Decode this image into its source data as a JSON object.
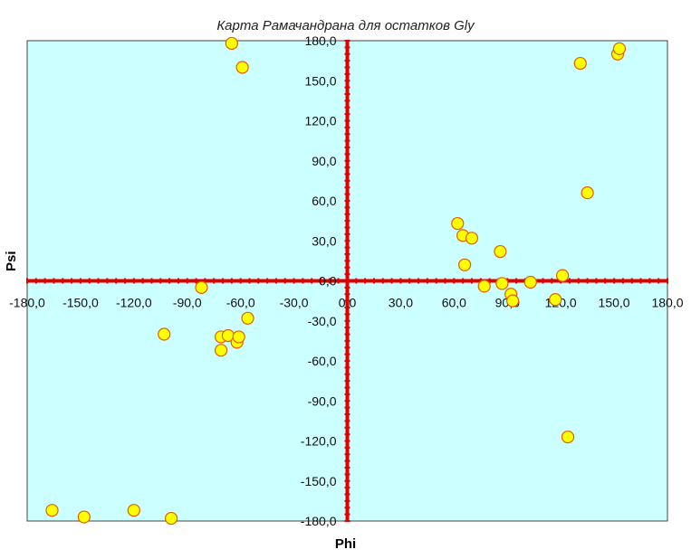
{
  "chart_data": {
    "type": "scatter",
    "title": "Карта Рамачандрана для остатков Gly",
    "xlabel": "Phi",
    "ylabel": "Psi",
    "xlim": [
      -180,
      180
    ],
    "ylim": [
      -180,
      180
    ],
    "x_ticks": [
      "-180,0",
      "-150,0",
      "-120,0",
      "-90,0",
      "-60,0",
      "-30,0",
      "0,0",
      "30,0",
      "60,0",
      "90,0",
      "120,0",
      "150,0",
      "180,0"
    ],
    "y_ticks": [
      "180,0",
      "150,0",
      "120,0",
      "90,0",
      "60,0",
      "30,0",
      "0,0",
      "-30,0",
      "-60,0",
      "-90,0",
      "-120,0",
      "-150,0",
      "-180,0"
    ],
    "grid": false,
    "colors": {
      "plot_bg": "#ccffff",
      "axis": "#e00000",
      "point_fill": "#ffff00",
      "point_stroke": "#e06000"
    },
    "series": [
      {
        "points": [
          [
            -166,
            -172
          ],
          [
            -148,
            -177
          ],
          [
            -120,
            -172
          ],
          [
            -99,
            -178
          ],
          [
            -103,
            -40
          ],
          [
            -82,
            -5
          ],
          [
            -71,
            -42
          ],
          [
            -71,
            -52
          ],
          [
            -67,
            -41
          ],
          [
            -62,
            -46
          ],
          [
            -61,
            -42
          ],
          [
            -56,
            -28
          ],
          [
            -65,
            178
          ],
          [
            -59,
            160
          ],
          [
            62,
            43
          ],
          [
            65,
            34
          ],
          [
            66,
            12
          ],
          [
            70,
            32
          ],
          [
            77,
            -4
          ],
          [
            86,
            22
          ],
          [
            87,
            -2
          ],
          [
            92,
            -10
          ],
          [
            93,
            -15
          ],
          [
            103,
            -1
          ],
          [
            117,
            -14
          ],
          [
            121,
            4
          ],
          [
            124,
            -117
          ],
          [
            131,
            163
          ],
          [
            135,
            66
          ],
          [
            152,
            170
          ],
          [
            153,
            174
          ]
        ]
      }
    ]
  }
}
